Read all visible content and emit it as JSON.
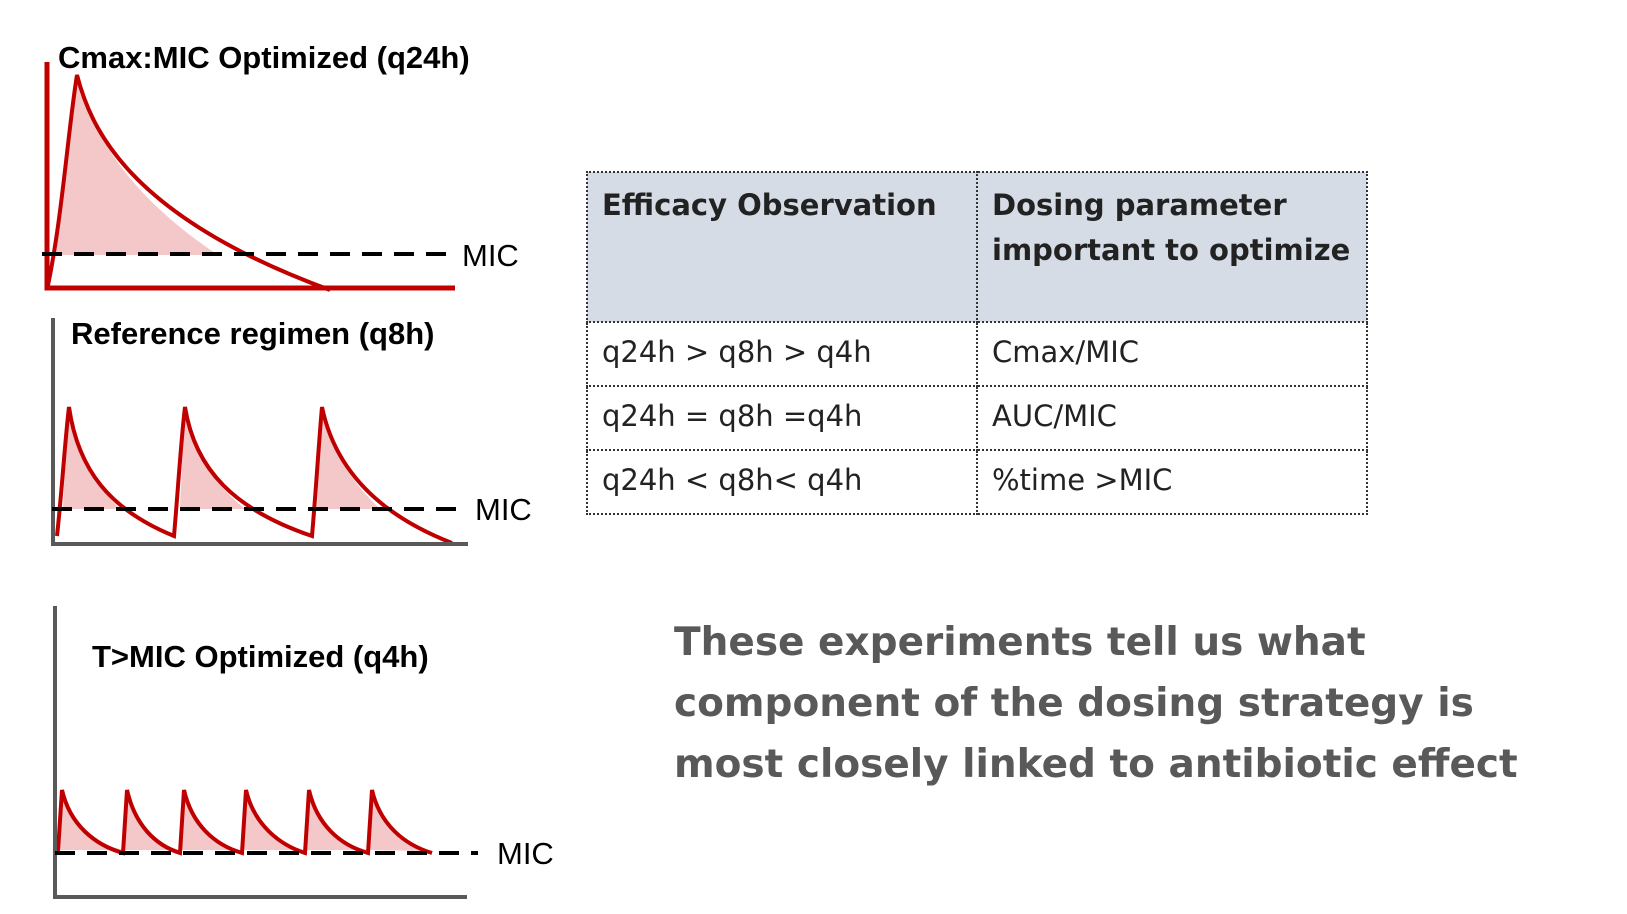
{
  "plots": [
    {
      "title": "Cmax:MIC Optimized (q24h)",
      "mic_label": "MIC",
      "regimen": "q24h"
    },
    {
      "title": "Reference regimen (q8h)",
      "mic_label": "MIC",
      "regimen": "q8h"
    },
    {
      "title": "T>MIC Optimized (q4h)",
      "mic_label": "MIC",
      "regimen": "q4h"
    }
  ],
  "colors": {
    "curve": "#c00000",
    "fill": "#f4c7c9",
    "axis_red": "#c00000",
    "axis_gray": "#595959",
    "header_bg": "#d6dce5"
  },
  "table": {
    "headers": [
      "Efficacy Observation",
      "Dosing parameter important to optimize"
    ],
    "rows": [
      [
        "q24h > q8h > q4h",
        "Cmax/MIC"
      ],
      [
        "q24h = q8h =q4h",
        "AUC/MIC"
      ],
      [
        "q24h < q8h< q4h",
        "%time >MIC"
      ]
    ]
  },
  "statement": "These experiments tell us what component of the dosing strategy is most closely linked to antibiotic effect"
}
